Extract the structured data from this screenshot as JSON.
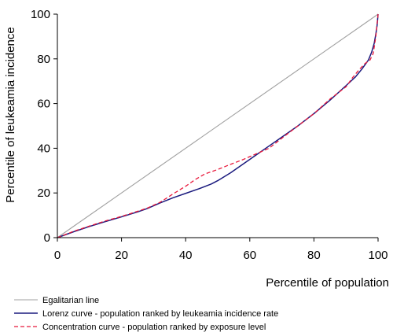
{
  "chart_data": {
    "type": "line",
    "title": "",
    "xlabel": "Percentile of population",
    "ylabel": "Percentile of leukeamia incidence",
    "xlim": [
      0,
      100
    ],
    "ylim": [
      0,
      100
    ],
    "xticks": [
      0,
      20,
      40,
      60,
      80,
      100
    ],
    "yticks": [
      0,
      20,
      40,
      60,
      80,
      100
    ],
    "grid": false,
    "legend_position": "bottom",
    "series": [
      {
        "name": "Egalitarian line",
        "color": "#a0a0a0",
        "style": "solid",
        "x": [
          0,
          100
        ],
        "y": [
          0,
          100
        ]
      },
      {
        "name": "Lorenz curve - population ranked by leukeamia incidence rate",
        "color": "#1a1a7e",
        "style": "solid",
        "x": [
          0,
          5,
          10,
          15,
          20,
          25,
          28,
          32,
          36,
          40,
          44,
          48,
          50,
          54,
          58,
          62,
          66,
          70,
          75,
          80,
          85,
          90,
          93,
          95,
          97,
          98,
          98.8,
          99.3,
          99.7,
          100
        ],
        "y": [
          0,
          2.6,
          5,
          7.2,
          9.3,
          11.5,
          13,
          15.5,
          17.8,
          19.8,
          21.8,
          24,
          25.5,
          29,
          33,
          37,
          41,
          45,
          50,
          55.5,
          61.5,
          68,
          72,
          75.5,
          79.5,
          83,
          87,
          91,
          95,
          100
        ]
      },
      {
        "name": "Concentration curve - population ranked by exposure level",
        "color": "#e8193c",
        "style": "dashed",
        "x": [
          0,
          5,
          10,
          15,
          20,
          25,
          28,
          32,
          36,
          40,
          43,
          46,
          50,
          54,
          58,
          62,
          66,
          70,
          75,
          80,
          85,
          90,
          92,
          94,
          96,
          97.5,
          98.5,
          99.3,
          100
        ],
        "y": [
          0,
          2.8,
          5.2,
          7.5,
          9.5,
          11.8,
          13.2,
          15.8,
          19.5,
          23,
          26,
          28.5,
          30.5,
          32.8,
          35,
          37.5,
          40,
          44.5,
          50,
          55.5,
          62,
          67.5,
          71.5,
          75,
          78,
          79.5,
          82.5,
          90,
          100
        ]
      }
    ]
  }
}
